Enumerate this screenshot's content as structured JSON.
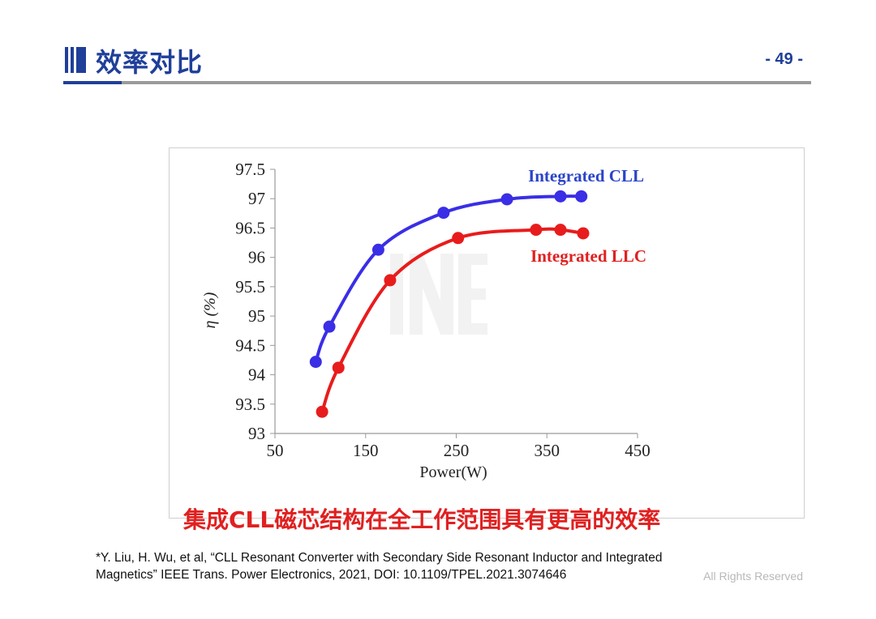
{
  "header": {
    "title": "效率对比",
    "page_number": "- 49 -",
    "accent_color": "#1f3f99"
  },
  "conclusion": {
    "text": "集成CLL磁芯结构在全工作范围具有更高的效率",
    "color": "#e02020"
  },
  "reference": {
    "line1": "*Y. Liu, H. Wu, et al, “CLL Resonant Converter with Secondary Side Resonant Inductor and Integrated",
    "line2": "Magnetics” IEEE Trans. Power Electronics, 2021, DOI: 10.1109/TPEL.2021.3074646"
  },
  "footer": {
    "rights": "All Rights Reserved"
  },
  "chart_data": {
    "type": "line",
    "xlabel": "Power(W)",
    "ylabel": "η (%)",
    "xlim": [
      50,
      450
    ],
    "ylim": [
      93,
      97.5
    ],
    "x_ticks": [
      "50",
      "150",
      "250",
      "350",
      "450"
    ],
    "y_ticks": [
      "93",
      "93.5",
      "94",
      "94.5",
      "95",
      "95.5",
      "96",
      "96.5",
      "97",
      "97.5"
    ],
    "grid": false,
    "legend": "inline labels",
    "series": [
      {
        "name": "Integrated CLL",
        "color": "#3a2ee6",
        "x": [
          95,
          110,
          164,
          236,
          306,
          365,
          388
        ],
        "y": [
          94.22,
          94.82,
          96.13,
          96.76,
          96.99,
          97.04,
          97.04
        ]
      },
      {
        "name": "Integrated LLC",
        "color": "#e81c1c",
        "x": [
          102,
          120,
          177,
          252,
          338,
          365,
          390
        ],
        "y": [
          93.37,
          94.12,
          95.61,
          96.33,
          96.47,
          96.47,
          96.41
        ]
      }
    ]
  }
}
